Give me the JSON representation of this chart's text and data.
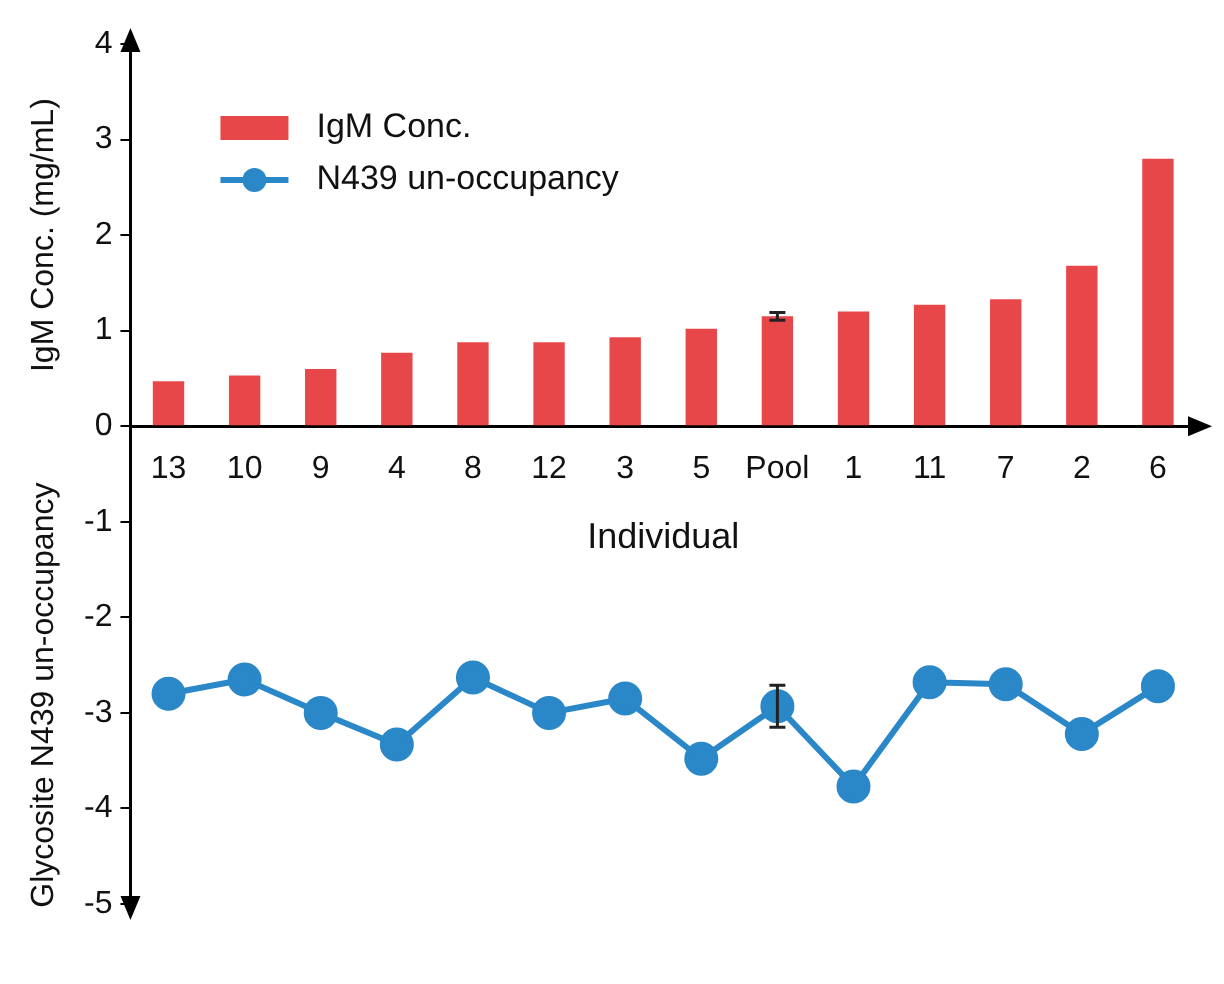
{
  "chart_data": {
    "type": "bar",
    "xlabel": "Individual",
    "ylabel": "IgM Conc. (mg/mL)",
    "y2label": "Glycosite N439 un-occupancy",
    "categories": [
      "13",
      "10",
      "9",
      "4",
      "8",
      "12",
      "3",
      "5",
      "Pool",
      "1",
      "11",
      "7",
      "2",
      "6"
    ],
    "series": [
      {
        "name": "IgM Conc.",
        "color": "#e8474a",
        "values": [
          0.47,
          0.53,
          0.6,
          0.77,
          0.88,
          0.88,
          0.93,
          1.02,
          1.15,
          1.2,
          1.27,
          1.33,
          1.68,
          2.8
        ],
        "errors": [
          null,
          null,
          null,
          null,
          null,
          null,
          null,
          null,
          0.04,
          null,
          null,
          null,
          null,
          null
        ]
      },
      {
        "name": "N439 un-occupancy",
        "type": "line",
        "color": "#2a87c8",
        "marker": "circle",
        "values": [
          -2.8,
          -2.65,
          -3.0,
          -3.33,
          -2.63,
          -3.0,
          -2.85,
          -3.48,
          -2.93,
          -3.77,
          -2.68,
          -2.7,
          -3.22,
          -2.72
        ],
        "errors": [
          null,
          null,
          null,
          null,
          null,
          null,
          null,
          null,
          0.22,
          null,
          null,
          null,
          null,
          null
        ]
      }
    ],
    "ylim": [
      -5,
      4
    ],
    "yticks": [
      -5,
      -4,
      -3,
      -2,
      -1,
      0,
      1,
      2,
      3,
      4
    ],
    "grid": false,
    "legend": "top left"
  }
}
